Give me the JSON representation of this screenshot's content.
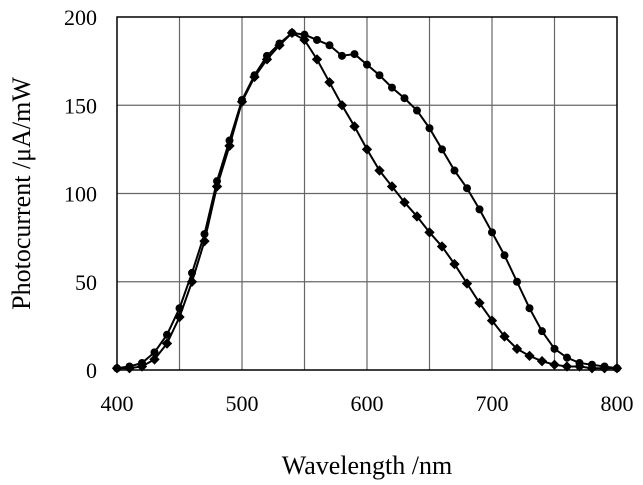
{
  "chart_data": {
    "type": "line",
    "title": "",
    "xlabel": "Wavelength /nm",
    "ylabel": "Photocurrent  /μA/mW",
    "xlim": [
      400,
      800
    ],
    "ylim": [
      0,
      200
    ],
    "xticks": [
      "400",
      "500",
      "600",
      "700",
      "800"
    ],
    "yticks": [
      "0",
      "50",
      "100",
      "150",
      "200"
    ],
    "grid": true,
    "legend": "none",
    "series": [
      {
        "marker": "circle",
        "x": [
          400,
          410,
          420,
          430,
          440,
          450,
          460,
          470,
          480,
          490,
          500,
          510,
          520,
          530,
          540,
          550,
          560,
          570,
          580,
          590,
          600,
          610,
          620,
          630,
          640,
          650,
          660,
          670,
          680,
          690,
          700,
          710,
          720,
          730,
          740,
          750,
          760,
          770,
          780,
          790,
          800
        ],
        "y": [
          1,
          2,
          4,
          10,
          20,
          35,
          55,
          77,
          107,
          130,
          153,
          167,
          178,
          185,
          191,
          190,
          187,
          184,
          178,
          179,
          173,
          167,
          160,
          154,
          147,
          137,
          125,
          113,
          103,
          91,
          78,
          65,
          50,
          35,
          22,
          12,
          7,
          4,
          3,
          2,
          1
        ]
      },
      {
        "marker": "diamond",
        "x": [
          400,
          410,
          420,
          430,
          440,
          450,
          460,
          470,
          480,
          490,
          500,
          510,
          520,
          530,
          540,
          550,
          560,
          570,
          580,
          590,
          600,
          610,
          620,
          630,
          640,
          650,
          660,
          670,
          680,
          690,
          700,
          710,
          720,
          730,
          740,
          750,
          760,
          770,
          780,
          790,
          800
        ],
        "y": [
          1,
          1,
          2,
          6,
          15,
          30,
          50,
          73,
          104,
          127,
          152,
          166,
          176,
          184,
          191,
          187,
          176,
          163,
          150,
          138,
          125,
          113,
          104,
          95,
          87,
          78,
          70,
          60,
          49,
          38,
          28,
          19,
          12,
          8,
          5,
          3,
          2,
          2,
          1,
          1,
          1
        ]
      }
    ]
  }
}
